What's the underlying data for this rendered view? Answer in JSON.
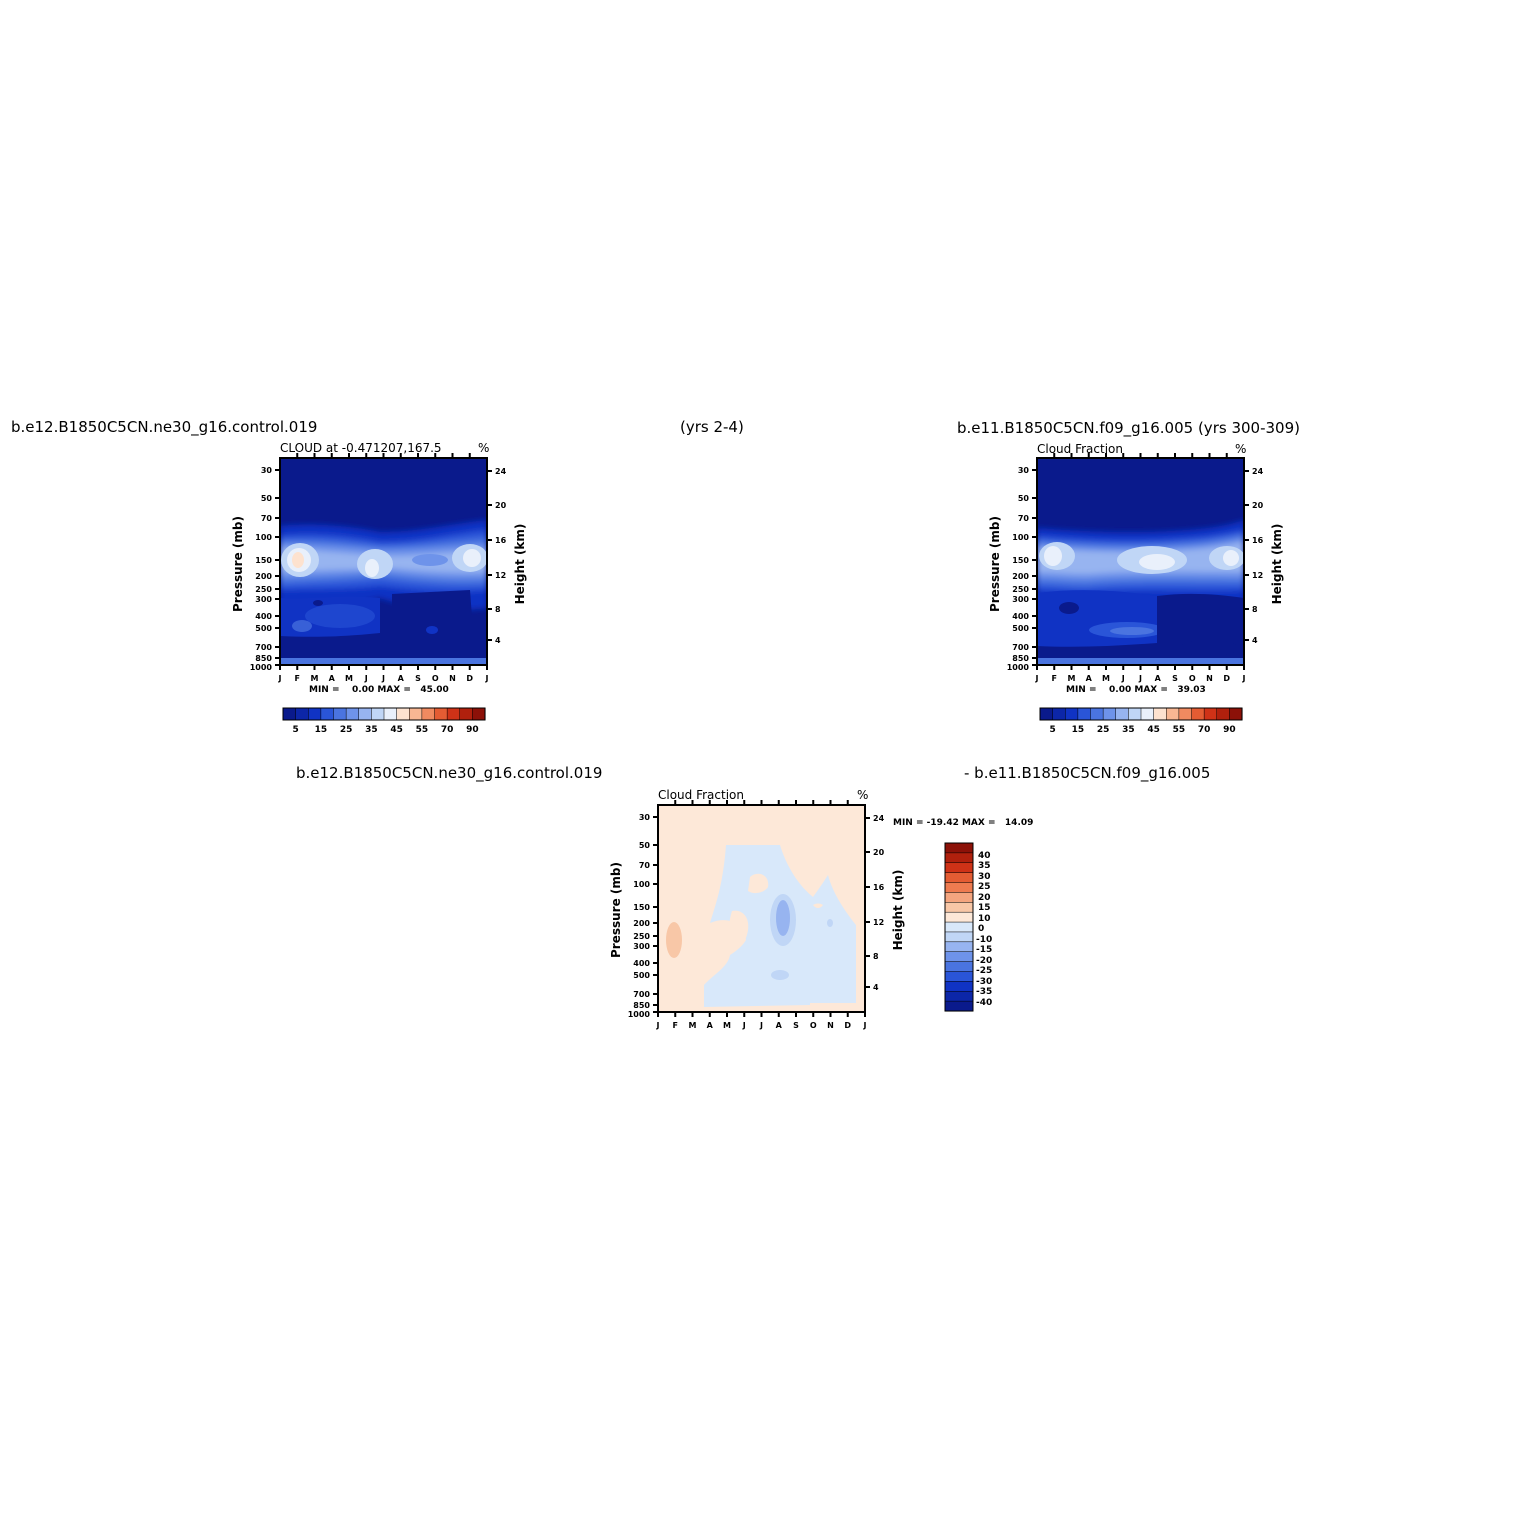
{
  "header": {
    "case1": "b.e12.B1850C5CN.ne30_g16.control.019",
    "years": "(yrs 2-4)",
    "case2": "b.e11.B1850C5CN.f09_g16.005 (yrs 300-309)"
  },
  "diff_header": {
    "left": "b.e12.B1850C5CN.ne30_g16.control.019",
    "right": "- b.e11.B1850C5CN.f09_g16.005"
  },
  "colors": {
    "abs_levels": [
      "#0a1a8c",
      "#0c26a8",
      "#1033c4",
      "#2a55d8",
      "#4a74e0",
      "#6e93ea",
      "#97b4f0",
      "#c0d6f6",
      "#e9f0fb",
      "#fde2cf",
      "#f8b793",
      "#f08a60",
      "#e45c33",
      "#cf3217",
      "#b0200d",
      "#8c1108"
    ],
    "diff_levels": [
      "#0a1a8c",
      "#0c26a8",
      "#1033c4",
      "#2a55d8",
      "#4a74e0",
      "#6e93ea",
      "#97b4f0",
      "#c0d6f6",
      "#d8e8fa",
      "#fde8d8",
      "#f8c7a7",
      "#f4a57f",
      "#ee7b50",
      "#e45c33",
      "#cf3217",
      "#b0200d",
      "#8c1108"
    ]
  },
  "chart_data": [
    {
      "type": "heatmap",
      "title": "CLOUD at -0.471207,167.5",
      "units": "%",
      "xlabel": "",
      "ylabel": "Pressure (mb)",
      "ylabel_right": "Height (km)",
      "x_ticks": [
        "J",
        "F",
        "M",
        "A",
        "M",
        "J",
        "J",
        "A",
        "S",
        "O",
        "N",
        "D",
        "J"
      ],
      "y_ticks": [
        "30",
        "50",
        "70",
        "100",
        "150",
        "200",
        "250",
        "300",
        "400",
        "500",
        "700",
        "850",
        "1000"
      ],
      "y_right_ticks": [
        "24",
        "20",
        "16",
        "12",
        "8",
        "4"
      ],
      "stats": "MIN =    0.00 MAX =   45.00",
      "colorbar_labels": [
        "5",
        "15",
        "25",
        "35",
        "45",
        "55",
        "70",
        "90"
      ],
      "features": [
        {
          "month": 1,
          "pressure": 160,
          "value": 45
        },
        {
          "month": 5,
          "pressure": 170,
          "value": 38
        },
        {
          "month": 10,
          "pressure": 150,
          "value": 30
        },
        {
          "month": 12,
          "pressure": 150,
          "value": 33
        }
      ]
    },
    {
      "type": "heatmap",
      "title": "Cloud Fraction",
      "units": "%",
      "xlabel": "",
      "ylabel": "Pressure (mb)",
      "ylabel_right": "Height (km)",
      "x_ticks": [
        "J",
        "F",
        "M",
        "A",
        "M",
        "J",
        "J",
        "A",
        "S",
        "O",
        "N",
        "D",
        "J"
      ],
      "y_ticks": [
        "30",
        "50",
        "70",
        "100",
        "150",
        "200",
        "250",
        "300",
        "400",
        "500",
        "700",
        "850",
        "1000"
      ],
      "y_right_ticks": [
        "24",
        "20",
        "16",
        "12",
        "8",
        "4"
      ],
      "stats": "MIN =    0.00 MAX =   39.03",
      "colorbar_labels": [
        "5",
        "15",
        "25",
        "35",
        "45",
        "55",
        "70",
        "90"
      ],
      "features": [
        {
          "month": 1,
          "pressure": 150,
          "value": 35
        },
        {
          "month": 7,
          "pressure": 160,
          "value": 39
        },
        {
          "month": 12,
          "pressure": 150,
          "value": 33
        }
      ]
    },
    {
      "type": "heatmap",
      "title": "Cloud Fraction",
      "units": "%",
      "xlabel": "",
      "ylabel": "Pressure (mb)",
      "ylabel_right": "Height (km)",
      "x_ticks": [
        "J",
        "F",
        "M",
        "A",
        "M",
        "J",
        "J",
        "A",
        "S",
        "O",
        "N",
        "D",
        "J"
      ],
      "y_ticks": [
        "30",
        "50",
        "70",
        "100",
        "150",
        "200",
        "250",
        "300",
        "400",
        "500",
        "700",
        "850",
        "1000"
      ],
      "y_right_ticks": [
        "24",
        "20",
        "16",
        "12",
        "8",
        "4"
      ],
      "stats": "MIN = -19.42 MAX =   14.09",
      "colorbar_labels": [
        "40",
        "35",
        "30",
        "25",
        "20",
        "15",
        "10",
        "0",
        "-10",
        "-15",
        "-20",
        "-25",
        "-30",
        "-35",
        "-40"
      ],
      "features": [
        {
          "month": 1.2,
          "pressure": 270,
          "value": 14.09
        },
        {
          "month": 7.2,
          "pressure": 200,
          "value": -19.42
        }
      ]
    }
  ]
}
